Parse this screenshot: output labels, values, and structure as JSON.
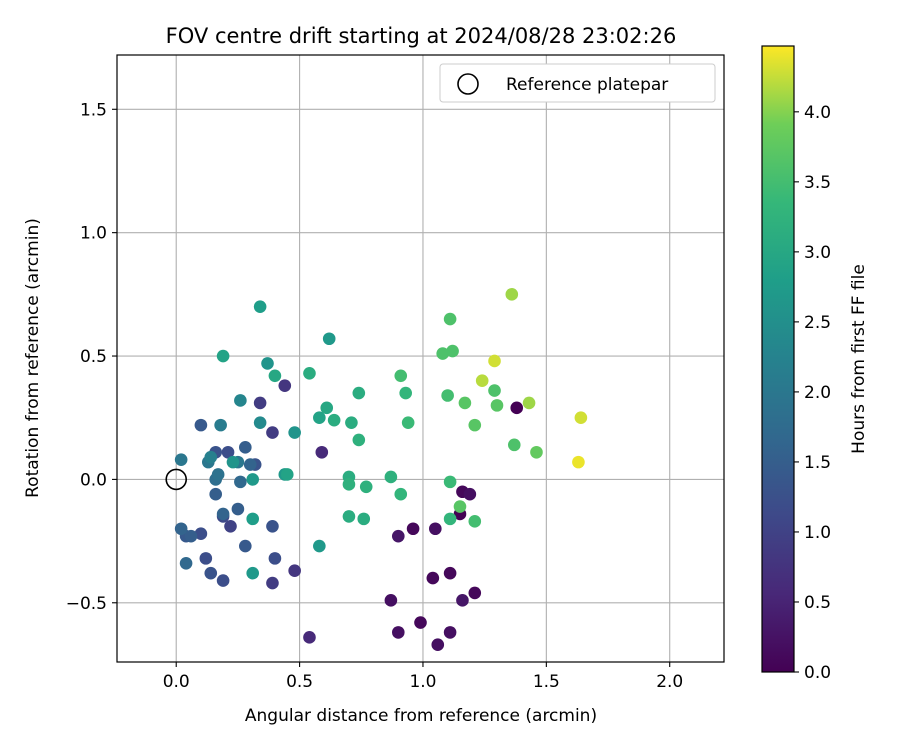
{
  "chart_data": {
    "type": "scatter",
    "title": "FOV centre drift starting at 2024/08/28 23:02:26",
    "xlabel": "Angular distance from reference (arcmin)",
    "ylabel": "Rotation from reference (arcmin)",
    "xlim": [
      -0.24,
      2.22
    ],
    "ylim": [
      -0.74,
      1.72
    ],
    "xticks": [
      0.0,
      0.5,
      1.0,
      1.5,
      2.0
    ],
    "xtick_labels": [
      "0.0",
      "0.5",
      "1.0",
      "1.5",
      "2.0"
    ],
    "yticks": [
      -0.5,
      0.0,
      0.5,
      1.0,
      1.5
    ],
    "ytick_labels": [
      "−0.5",
      "0.0",
      "0.5",
      "1.0",
      "1.5"
    ],
    "grid": true,
    "colormap": "viridis",
    "colorbar": {
      "label": "Hours from first FF file",
      "range": [
        0.0,
        4.47
      ],
      "ticks": [
        0.0,
        0.5,
        1.0,
        1.5,
        2.0,
        2.5,
        3.0,
        3.5,
        4.0
      ],
      "tick_labels": [
        "0.0",
        "0.5",
        "1.0",
        "1.5",
        "2.0",
        "2.5",
        "3.0",
        "3.5",
        "4.0"
      ]
    },
    "legend": {
      "position": "top-right",
      "entries": [
        {
          "label": "Reference platepar",
          "marker": "open-circle"
        }
      ]
    },
    "reference_point": {
      "x": 0.0,
      "y": 0.0,
      "label": "Reference platepar"
    },
    "points": [
      {
        "x": 0.54,
        "y": -0.64,
        "h": 0.6
      },
      {
        "x": 0.87,
        "y": -0.49,
        "h": 0.2
      },
      {
        "x": 0.9,
        "y": -0.23,
        "h": 0.3
      },
      {
        "x": 0.96,
        "y": -0.2,
        "h": 0.1
      },
      {
        "x": 0.9,
        "y": -0.62,
        "h": 0.2
      },
      {
        "x": 0.99,
        "y": -0.58,
        "h": 0.1
      },
      {
        "x": 1.04,
        "y": -0.4,
        "h": 0.1
      },
      {
        "x": 1.05,
        "y": -0.2,
        "h": 0.2
      },
      {
        "x": 1.06,
        "y": -0.67,
        "h": 0.2
      },
      {
        "x": 1.11,
        "y": -0.38,
        "h": 0.1
      },
      {
        "x": 1.11,
        "y": -0.62,
        "h": 0.2
      },
      {
        "x": 1.15,
        "y": -0.14,
        "h": 0.0
      },
      {
        "x": 1.16,
        "y": -0.05,
        "h": 0.1
      },
      {
        "x": 1.16,
        "y": -0.49,
        "h": 0.3
      },
      {
        "x": 1.19,
        "y": -0.06,
        "h": 0.2
      },
      {
        "x": 1.21,
        "y": -0.46,
        "h": 0.1
      },
      {
        "x": 1.38,
        "y": 0.29,
        "h": 0.0
      },
      {
        "x": 0.59,
        "y": 0.11,
        "h": 0.6
      },
      {
        "x": 0.44,
        "y": 0.38,
        "h": 0.8
      },
      {
        "x": 0.48,
        "y": -0.37,
        "h": 0.8
      },
      {
        "x": 0.39,
        "y": 0.19,
        "h": 0.9
      },
      {
        "x": 0.34,
        "y": 0.31,
        "h": 0.9
      },
      {
        "x": 0.39,
        "y": -0.42,
        "h": 0.9
      },
      {
        "x": 0.4,
        "y": -0.32,
        "h": 1.2
      },
      {
        "x": 0.39,
        "y": -0.19,
        "h": 1.3
      },
      {
        "x": 0.22,
        "y": -0.19,
        "h": 1.0
      },
      {
        "x": 0.19,
        "y": -0.41,
        "h": 1.2
      },
      {
        "x": 0.19,
        "y": -0.15,
        "h": 1.1
      },
      {
        "x": 0.12,
        "y": -0.32,
        "h": 1.2
      },
      {
        "x": 0.14,
        "y": -0.38,
        "h": 1.3
      },
      {
        "x": 0.1,
        "y": -0.22,
        "h": 1.2
      },
      {
        "x": 0.04,
        "y": -0.23,
        "h": 1.4
      },
      {
        "x": 0.06,
        "y": -0.23,
        "h": 1.5
      },
      {
        "x": 0.02,
        "y": -0.2,
        "h": 1.6
      },
      {
        "x": 0.04,
        "y": -0.34,
        "h": 1.7
      },
      {
        "x": 0.28,
        "y": -0.27,
        "h": 1.4
      },
      {
        "x": 0.25,
        "y": -0.12,
        "h": 1.5
      },
      {
        "x": 0.19,
        "y": -0.14,
        "h": 1.6
      },
      {
        "x": 0.16,
        "y": -0.06,
        "h": 1.5
      },
      {
        "x": 0.1,
        "y": 0.22,
        "h": 1.4
      },
      {
        "x": 0.16,
        "y": 0.11,
        "h": 1.3
      },
      {
        "x": 0.21,
        "y": 0.11,
        "h": 1.2
      },
      {
        "x": 0.32,
        "y": 0.06,
        "h": 1.3
      },
      {
        "x": 0.28,
        "y": 0.13,
        "h": 1.5
      },
      {
        "x": 0.3,
        "y": 0.06,
        "h": 1.6
      },
      {
        "x": 0.26,
        "y": -0.01,
        "h": 1.7
      },
      {
        "x": 0.16,
        "y": 0.0,
        "h": 1.8
      },
      {
        "x": 0.17,
        "y": 0.02,
        "h": 1.9
      },
      {
        "x": 0.13,
        "y": 0.07,
        "h": 2.0
      },
      {
        "x": 0.02,
        "y": 0.08,
        "h": 2.0
      },
      {
        "x": 0.14,
        "y": 0.09,
        "h": 2.2
      },
      {
        "x": 0.18,
        "y": 0.22,
        "h": 2.1
      },
      {
        "x": 0.25,
        "y": 0.07,
        "h": 2.0
      },
      {
        "x": 0.23,
        "y": 0.07,
        "h": 2.6
      },
      {
        "x": 0.26,
        "y": 0.32,
        "h": 2.3
      },
      {
        "x": 0.34,
        "y": 0.23,
        "h": 2.4
      },
      {
        "x": 0.37,
        "y": 0.47,
        "h": 2.6
      },
      {
        "x": 0.31,
        "y": 0.0,
        "h": 2.7
      },
      {
        "x": 0.31,
        "y": -0.16,
        "h": 2.8
      },
      {
        "x": 0.31,
        "y": -0.38,
        "h": 2.7
      },
      {
        "x": 0.48,
        "y": 0.19,
        "h": 2.6
      },
      {
        "x": 0.44,
        "y": 0.02,
        "h": 2.7
      },
      {
        "x": 0.45,
        "y": 0.02,
        "h": 2.9
      },
      {
        "x": 0.58,
        "y": -0.27,
        "h": 2.7
      },
      {
        "x": 0.58,
        "y": 0.25,
        "h": 2.9
      },
      {
        "x": 0.34,
        "y": 0.7,
        "h": 2.8
      },
      {
        "x": 0.4,
        "y": 0.42,
        "h": 3.0
      },
      {
        "x": 0.19,
        "y": 0.5,
        "h": 2.9
      },
      {
        "x": 0.61,
        "y": 0.29,
        "h": 3.0
      },
      {
        "x": 0.62,
        "y": 0.57,
        "h": 2.7
      },
      {
        "x": 0.64,
        "y": 0.24,
        "h": 3.1
      },
      {
        "x": 0.54,
        "y": 0.43,
        "h": 3.1
      },
      {
        "x": 0.71,
        "y": 0.23,
        "h": 3.1
      },
      {
        "x": 0.74,
        "y": 0.35,
        "h": 3.1
      },
      {
        "x": 0.74,
        "y": 0.16,
        "h": 3.2
      },
      {
        "x": 0.7,
        "y": 0.01,
        "h": 3.1
      },
      {
        "x": 0.7,
        "y": -0.02,
        "h": 3.2
      },
      {
        "x": 0.7,
        "y": -0.15,
        "h": 3.1
      },
      {
        "x": 0.76,
        "y": -0.16,
        "h": 3.1
      },
      {
        "x": 0.77,
        "y": -0.03,
        "h": 3.2
      },
      {
        "x": 0.87,
        "y": 0.01,
        "h": 3.2
      },
      {
        "x": 0.91,
        "y": -0.06,
        "h": 3.3
      },
      {
        "x": 0.93,
        "y": 0.35,
        "h": 3.3
      },
      {
        "x": 0.91,
        "y": 0.42,
        "h": 3.5
      },
      {
        "x": 0.94,
        "y": 0.23,
        "h": 3.4
      },
      {
        "x": 1.1,
        "y": 0.34,
        "h": 3.5
      },
      {
        "x": 1.11,
        "y": -0.01,
        "h": 3.4
      },
      {
        "x": 1.11,
        "y": -0.16,
        "h": 3.3
      },
      {
        "x": 1.15,
        "y": -0.11,
        "h": 3.7
      },
      {
        "x": 1.08,
        "y": 0.51,
        "h": 3.6
      },
      {
        "x": 1.12,
        "y": 0.52,
        "h": 3.6
      },
      {
        "x": 1.11,
        "y": 0.65,
        "h": 3.6
      },
      {
        "x": 1.17,
        "y": 0.31,
        "h": 3.7
      },
      {
        "x": 1.21,
        "y": 0.22,
        "h": 3.7
      },
      {
        "x": 1.21,
        "y": -0.17,
        "h": 3.5
      },
      {
        "x": 1.29,
        "y": 0.36,
        "h": 3.6
      },
      {
        "x": 1.3,
        "y": 0.3,
        "h": 3.7
      },
      {
        "x": 1.37,
        "y": 0.14,
        "h": 3.6
      },
      {
        "x": 1.46,
        "y": 0.11,
        "h": 3.8
      },
      {
        "x": 1.24,
        "y": 0.4,
        "h": 4.2
      },
      {
        "x": 1.29,
        "y": 0.48,
        "h": 4.3
      },
      {
        "x": 1.36,
        "y": 0.75,
        "h": 4.1
      },
      {
        "x": 1.43,
        "y": 0.31,
        "h": 4.1
      },
      {
        "x": 1.63,
        "y": 0.07,
        "h": 4.4
      },
      {
        "x": 1.64,
        "y": 0.25,
        "h": 4.3
      }
    ]
  }
}
